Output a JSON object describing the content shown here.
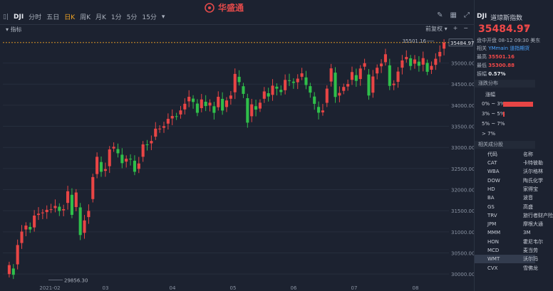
{
  "toolbar": {
    "symbol": "DJI",
    "periods": [
      "分时",
      "五日",
      "日K",
      "周K",
      "月K",
      "1分",
      "5分",
      "15分"
    ],
    "active_period": "日K",
    "dropdown_icon": "chevron-down-icon",
    "logo_text": "华盛通",
    "subbar_title": "指标",
    "adj_label": "前复权"
  },
  "chart_data": {
    "type": "candlestick",
    "x_labels": [
      "2021-02",
      "03",
      "04",
      "05",
      "06",
      "07",
      "08"
    ],
    "y_ticks": [
      "35000.00",
      "34500.00",
      "34000.00",
      "33500.00",
      "33000.00",
      "32500.00",
      "32000.00",
      "31500.00",
      "31000.00",
      "30500.00",
      "30000.00"
    ],
    "ylim": [
      29800,
      35600
    ],
    "high_marker": "35501.16",
    "low_marker": "29856.30",
    "last_price_tag": "35484.97",
    "up_color": "#e84545",
    "down_color": "#2fbf4a",
    "series": [
      {
        "name": "DJI",
        "close": [
          30211,
          29982,
          30687,
          31006,
          31148,
          31055,
          31385,
          31430,
          31458,
          31521,
          31535,
          31613,
          31494,
          31537,
          31961,
          31402,
          31932,
          30924,
          31270,
          31496,
          32297,
          32778,
          32423,
          32485,
          32953,
          33015,
          32862,
          32627,
          32732,
          32731,
          32423,
          32620,
          33072,
          33066,
          33153,
          33445,
          33446,
          33503,
          33677,
          33745,
          33730,
          33877,
          34035,
          34200,
          34077,
          33821,
          34137,
          33981,
          34060,
          33820,
          34200,
          33874,
          34113,
          34230,
          34742,
          34548,
          34269,
          33587,
          34021,
          33896,
          34060,
          34327,
          34207,
          34464,
          34393,
          34312,
          34600,
          34575,
          34529,
          34630,
          34756,
          34479,
          34299,
          34033,
          33823,
          33876,
          34393,
          34874,
          34196,
          34292,
          34433,
          34502,
          34786,
          34577,
          34870,
          34996,
          34230,
          34681,
          34888,
          34987,
          35208,
          34458,
          34511,
          34798,
          35061,
          35144,
          34930,
          35085,
          34935,
          35116,
          34792,
          34932,
          35101,
          35264,
          35484
        ]
      }
    ]
  },
  "quote": {
    "code": "DJI",
    "name": "道琼斯指数",
    "price": "35484.97",
    "status": "盘中开盘 08-12 09:30 美东",
    "related_label": "相关",
    "related_value": "YMmain 道指期货",
    "high_label": "最高",
    "high_value": "35501.16",
    "low_label": "最低",
    "low_value": "35300.88",
    "amp_label": "振幅",
    "amp_value": "0.57%"
  },
  "distribution": {
    "title": "涨跌分布",
    "header": "涨幅",
    "rows": [
      {
        "label": "0% ~ 3%",
        "pct": 0.95
      },
      {
        "label": "3% ~ 5%",
        "pct": 0.04
      },
      {
        "label": "5% ~ 7%",
        "pct": 0.0
      },
      {
        "label": "> 7%",
        "pct": 0.0
      }
    ]
  },
  "constituents": {
    "title": "相关成分股",
    "col_code": "代码",
    "col_name": "名称",
    "rows": [
      {
        "code": "CAT",
        "name": "卡特彼勒"
      },
      {
        "code": "WBA",
        "name": "沃尔格林"
      },
      {
        "code": "DOW",
        "name": "陶氏化学"
      },
      {
        "code": "HD",
        "name": "家得宝"
      },
      {
        "code": "BA",
        "name": "波音"
      },
      {
        "code": "GS",
        "name": "高盛"
      },
      {
        "code": "TRV",
        "name": "旅行者财产险"
      },
      {
        "code": "JPM",
        "name": "摩根大通"
      },
      {
        "code": "MMM",
        "name": "3M"
      },
      {
        "code": "HON",
        "name": "霍尼韦尔"
      },
      {
        "code": "MCD",
        "name": "麦当劳"
      },
      {
        "code": "WMT",
        "name": "沃尔玛"
      },
      {
        "code": "CVX",
        "name": "雪佛龙"
      }
    ]
  }
}
